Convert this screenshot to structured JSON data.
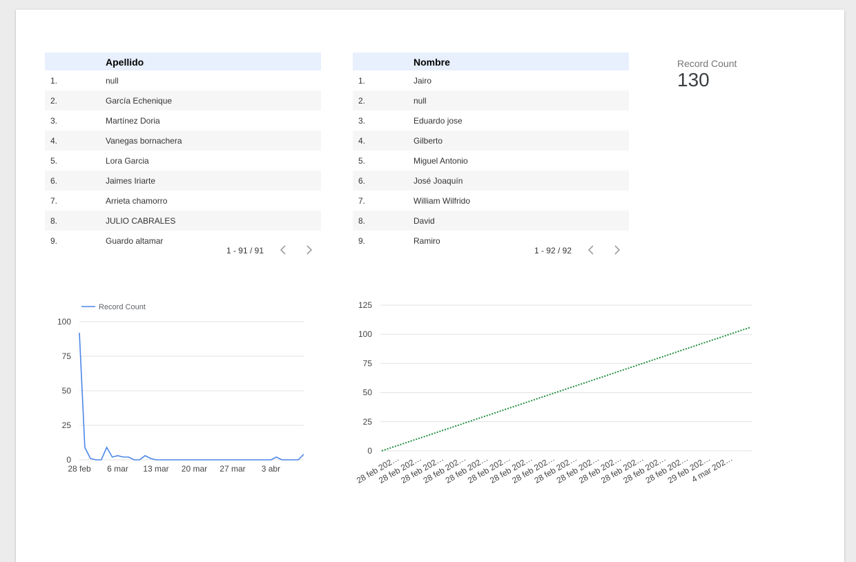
{
  "table_apellido": {
    "header": "Apellido",
    "rows": [
      {
        "idx": "1.",
        "val": "null"
      },
      {
        "idx": "2.",
        "val": "García Echenique"
      },
      {
        "idx": "3.",
        "val": "Martínez Doria"
      },
      {
        "idx": "4.",
        "val": "Vanegas bornachera"
      },
      {
        "idx": "5.",
        "val": "Lora Garcia"
      },
      {
        "idx": "6.",
        "val": "Jaimes Iriarte"
      },
      {
        "idx": "7.",
        "val": "Arrieta chamorro"
      },
      {
        "idx": "8.",
        "val": "JULIO CABRALES"
      },
      {
        "idx": "9.",
        "val": "Guardo altamar"
      }
    ],
    "pagination": "1 - 91 / 91"
  },
  "table_nombre": {
    "header": "Nombre",
    "rows": [
      {
        "idx": "1.",
        "val": "Jairo"
      },
      {
        "idx": "2.",
        "val": "null"
      },
      {
        "idx": "3.",
        "val": "Eduardo jose"
      },
      {
        "idx": "4.",
        "val": "Gilberto"
      },
      {
        "idx": "5.",
        "val": "Miguel Antonio"
      },
      {
        "idx": "6.",
        "val": "José Joaquín"
      },
      {
        "idx": "7.",
        "val": "William Wilfrido"
      },
      {
        "idx": "8.",
        "val": "David"
      },
      {
        "idx": "9.",
        "val": "Ramiro"
      }
    ],
    "pagination": "1 - 92 / 92"
  },
  "scorecard": {
    "label": "Record Count",
    "value": "130"
  },
  "chart_data": [
    {
      "type": "line",
      "legend": [
        "Record Count"
      ],
      "legend_position": "top-left",
      "color": "#4a86e8",
      "ylim": [
        0,
        100
      ],
      "yticks": [
        0,
        25,
        50,
        75,
        100
      ],
      "xticks": [
        "28 feb",
        "6 mar",
        "13 mar",
        "20 mar",
        "27 mar",
        "3 abr"
      ],
      "grid": true,
      "series": [
        {
          "name": "Record Count",
          "values": [
            92,
            9,
            1,
            0,
            0,
            9,
            2,
            3,
            2,
            2,
            0,
            0,
            3,
            1,
            0,
            0,
            0,
            0,
            0,
            0,
            0,
            0,
            0,
            0,
            0,
            0,
            0,
            0,
            0,
            0,
            0,
            0,
            0,
            0,
            0,
            0,
            2,
            0,
            0,
            0,
            0,
            4
          ]
        }
      ]
    },
    {
      "type": "line",
      "color": "#1e8e3e",
      "ylim": [
        0,
        125
      ],
      "yticks": [
        0,
        25,
        50,
        75,
        100,
        125
      ],
      "xticks": [
        "28 feb 202…",
        "28 feb 202…",
        "28 feb 202…",
        "28 feb 202…",
        "28 feb 202…",
        "28 feb 202…",
        "28 feb 202…",
        "28 feb 202…",
        "28 feb 202…",
        "28 feb 202…",
        "28 feb 202…",
        "28 feb 202…",
        "28 feb 202…",
        "28 feb 202…",
        "29 feb 202…",
        "4 mar 202…"
      ],
      "grid": true,
      "series": [
        {
          "name": "",
          "start": 0,
          "end": 106,
          "points": 107
        }
      ]
    }
  ]
}
